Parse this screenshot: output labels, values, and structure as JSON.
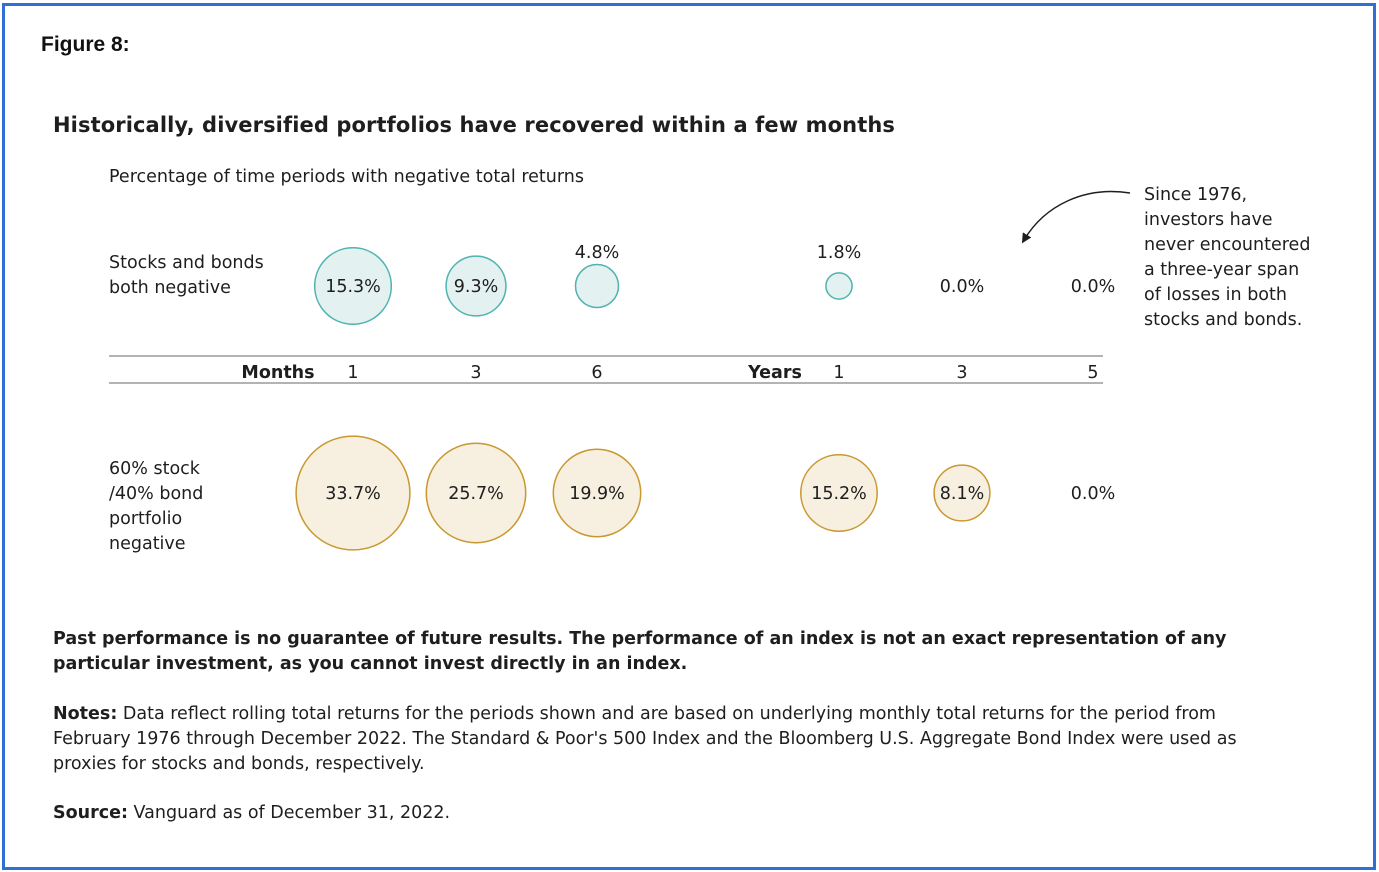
{
  "figure_label": "Figure 8:",
  "chart_data": {
    "type": "bubble",
    "title": "Historically, diversified portfolios have recovered within a few months",
    "subtitle": "Percentage of time periods with negative total returns",
    "unit": "%",
    "axis": {
      "groups": [
        {
          "label": "Months",
          "ticks": [
            "1",
            "3",
            "6"
          ]
        },
        {
          "label": "Years",
          "ticks": [
            "1",
            "3",
            "5"
          ]
        }
      ]
    },
    "series": [
      {
        "name": "Stocks and bonds both negative",
        "values": [
          15.3,
          9.3,
          4.8,
          1.8,
          0.0,
          0.0
        ],
        "labels": [
          "15.3%",
          "9.3%",
          "4.8%",
          "1.8%",
          "0.0%",
          "0.0%"
        ],
        "color": "#4fb3b0",
        "fill": "#e3f1f0"
      },
      {
        "name": "60% stock /40% bond portfolio negative",
        "values": [
          33.7,
          25.7,
          19.9,
          15.2,
          8.1,
          0.0
        ],
        "labels": [
          "33.7%",
          "25.7%",
          "19.9%",
          "15.2%",
          "8.1%",
          "0.0%"
        ],
        "color": "#c9982f",
        "fill": "#f5ead6"
      }
    ],
    "annotation": "Since 1976, investors have never encountered a three-year span of losses in both stocks and bonds."
  },
  "row_labels": {
    "row1": "Stocks and bonds both negative",
    "row2": "60% stock /40% bond portfolio negative"
  },
  "footnotes": {
    "disclaimer": "Past performance is no guarantee of future results. The performance of an index is not an exact representation of any particular investment, as you cannot invest directly in an index.",
    "notes_label": "Notes:",
    "notes_text": " Data reflect rolling total returns for the periods shown and are based on underlying monthly total returns for the period from February 1976 through December 2022. The Standard & Poor's 500 Index and the Bloomberg U.S. Aggregate Bond Index were used as proxies for stocks and bonds, respectively.",
    "source_label": "Source:",
    "source_text": " Vanguard as of December 31, 2022."
  }
}
